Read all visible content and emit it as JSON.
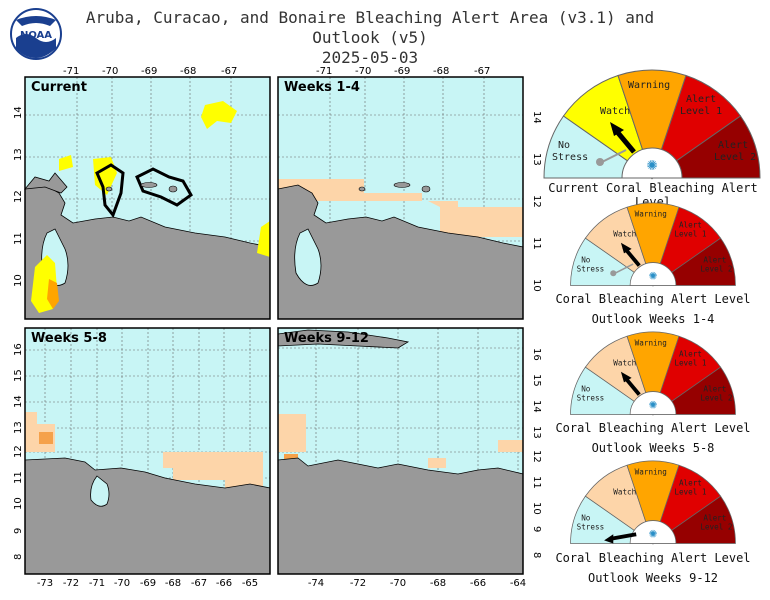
{
  "header": {
    "title_line1": "Aruba, Curacao, and Bonaire Bleaching Alert Area (v3.1) and Outlook (v5)",
    "title_line2": "2025-05-03",
    "logo_text": "NOAA"
  },
  "panels": [
    {
      "label": "Current"
    },
    {
      "label": "Weeks 1-4"
    },
    {
      "label": "Weeks 5-8"
    },
    {
      "label": "Weeks 9-12"
    }
  ],
  "axes": {
    "top_lon": [
      "-71",
      "-70",
      "-69",
      "-68",
      "-67"
    ],
    "lat_top": [
      "14",
      "13",
      "12",
      "11",
      "10"
    ],
    "lat_bottom": [
      "16",
      "15",
      "14",
      "13",
      "12",
      "11",
      "10",
      "9",
      "8"
    ],
    "bottom_left_lon": [
      "-73",
      "-72",
      "-71",
      "-70",
      "-69",
      "-68",
      "-67",
      "-66",
      "-65"
    ],
    "bottom_right_lon": [
      "-74",
      "-72",
      "-70",
      "-68",
      "-66",
      "-64"
    ]
  },
  "gauge_labels": {
    "no_stress": [
      "No",
      "Stress"
    ],
    "watch": "Watch",
    "warning": "Warning",
    "alert1": [
      "Alert",
      "Level 1"
    ],
    "alert2": [
      "Alert",
      "Level 2"
    ]
  },
  "gauges": [
    {
      "caption1": "Current Coral Bleaching Alert Level",
      "caption2": "",
      "level": "Watch"
    },
    {
      "caption1": "Coral Bleaching Alert Level",
      "caption2": "Outlook Weeks 1-4",
      "level": "Watch"
    },
    {
      "caption1": "Coral Bleaching Alert Level",
      "caption2": "Outlook Weeks 5-8",
      "level": "Watch"
    },
    {
      "caption1": "Coral Bleaching Alert Level",
      "caption2": "Outlook Weeks 9-12",
      "level": "No Stress"
    }
  ],
  "colors": {
    "ocean": "#c8f5f5",
    "land": "#999999",
    "no_stress": "#c8f5f5",
    "watch": "#ffff00",
    "warning": "#ffa500",
    "alert1": "#e00000",
    "alert2": "#960000",
    "outlook_watch": "#fdd5a9",
    "outlook_warning": "#f5a14a"
  }
}
